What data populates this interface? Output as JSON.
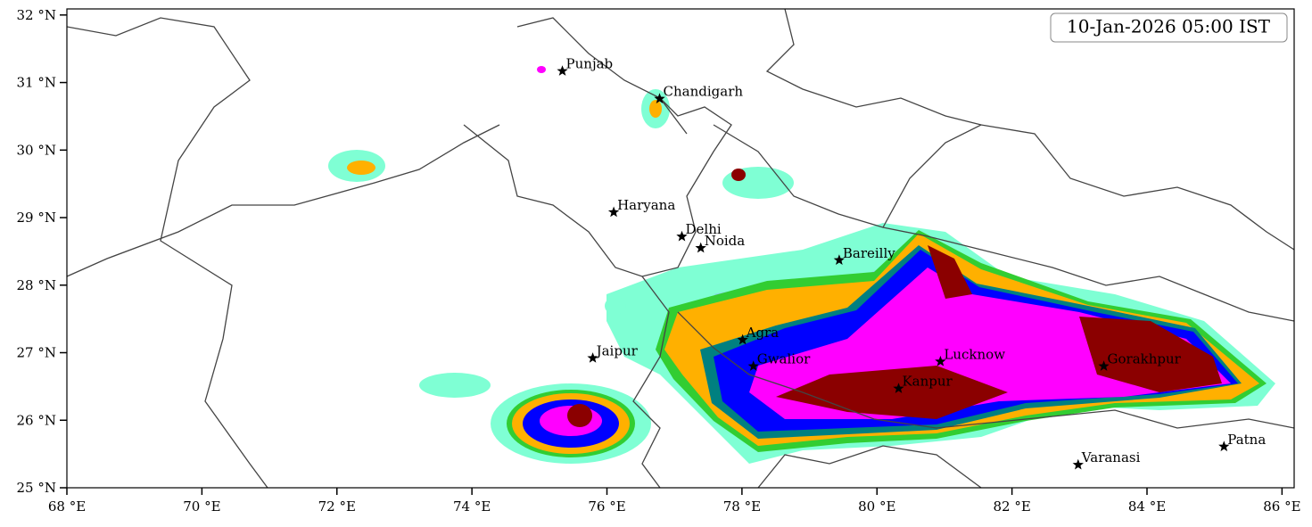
{
  "map": {
    "timestamp": "10-Jan-2026 05:00 IST",
    "xlim": [
      68,
      86.18
    ],
    "ylim": [
      25,
      32.09
    ],
    "xticks": [
      {
        "value": 68,
        "label": "68 °E"
      },
      {
        "value": 70,
        "label": "70 °E"
      },
      {
        "value": 72,
        "label": "72 °E"
      },
      {
        "value": 74,
        "label": "74 °E"
      },
      {
        "value": 76,
        "label": "76 °E"
      },
      {
        "value": 78,
        "label": "78 °E"
      },
      {
        "value": 80,
        "label": "80 °E"
      },
      {
        "value": 82,
        "label": "82 °E"
      },
      {
        "value": 84,
        "label": "84 °E"
      },
      {
        "value": 86,
        "label": "86 °E"
      }
    ],
    "yticks": [
      {
        "value": 25,
        "label": "25 °N"
      },
      {
        "value": 26,
        "label": "26 °N"
      },
      {
        "value": 27,
        "label": "27 °N"
      },
      {
        "value": 28,
        "label": "28 °N"
      },
      {
        "value": 29,
        "label": "29 °N"
      },
      {
        "value": 30,
        "label": "30 °N"
      },
      {
        "value": 31,
        "label": "31 °N"
      },
      {
        "value": 32,
        "label": "32 °N"
      }
    ],
    "cities": [
      {
        "name": "Punjab",
        "lon": 75.34,
        "lat": 31.17
      },
      {
        "name": "Chandigarh",
        "lon": 76.78,
        "lat": 30.76
      },
      {
        "name": "Haryana",
        "lon": 76.1,
        "lat": 29.08
      },
      {
        "name": "Delhi",
        "lon": 77.11,
        "lat": 28.72
      },
      {
        "name": "Noida",
        "lon": 77.39,
        "lat": 28.55
      },
      {
        "name": "Bareilly",
        "lon": 79.44,
        "lat": 28.37
      },
      {
        "name": "Agra",
        "lon": 78.01,
        "lat": 27.19
      },
      {
        "name": "Jaipur",
        "lon": 75.79,
        "lat": 26.92
      },
      {
        "name": "Gwalior",
        "lon": 78.17,
        "lat": 26.8
      },
      {
        "name": "Lucknow",
        "lon": 80.94,
        "lat": 26.87
      },
      {
        "name": "Kanpur",
        "lon": 80.32,
        "lat": 26.47
      },
      {
        "name": "Gorakhpur",
        "lon": 83.36,
        "lat": 26.8
      },
      {
        "name": "Varanasi",
        "lon": 82.98,
        "lat": 25.34
      },
      {
        "name": "Patna",
        "lon": 85.14,
        "lat": 25.61
      }
    ]
  }
}
